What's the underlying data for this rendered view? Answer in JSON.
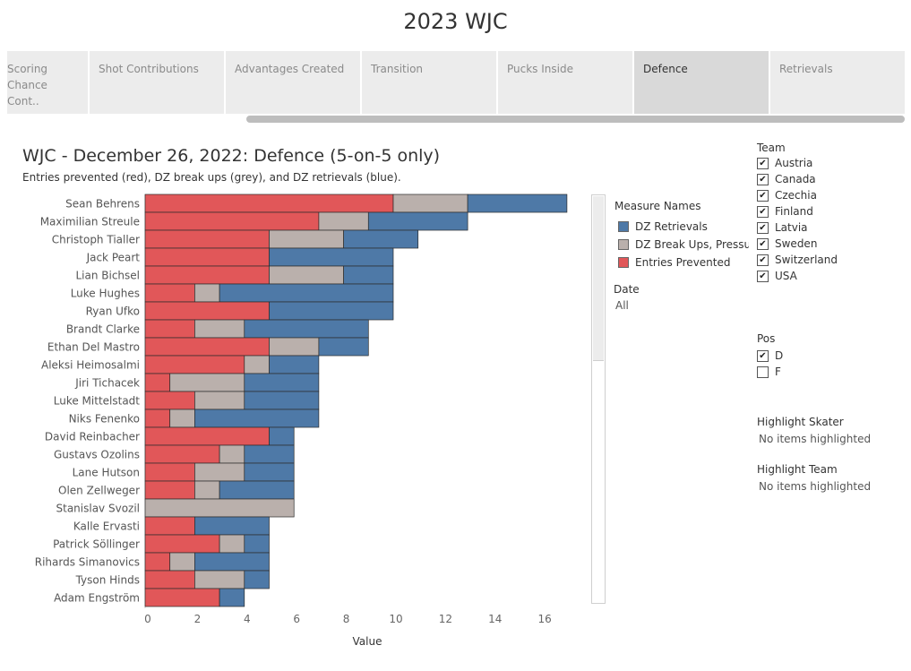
{
  "dashboard": {
    "title": "2023 WJC"
  },
  "tabs": [
    {
      "label": "Scoring Chance Cont..",
      "active": false
    },
    {
      "label": "Shot Contributions",
      "active": false
    },
    {
      "label": "Advantages Created",
      "active": false
    },
    {
      "label": "Transition",
      "active": false
    },
    {
      "label": "Pucks Inside",
      "active": false
    },
    {
      "label": "Defence",
      "active": true
    },
    {
      "label": "Retrievals",
      "active": false
    }
  ],
  "sheet": {
    "title": "WJC - December 26, 2022: Defence (5-on-5 only)",
    "subtitle": "Entries prevented (red), DZ break ups (grey), and DZ retrievals (blue)."
  },
  "legend": {
    "title": "Measure Names",
    "items": [
      {
        "label": "DZ Retrievals",
        "color": "#4e79a7"
      },
      {
        "label": "DZ Break Ups, Pressu..",
        "color": "#bab0ac"
      },
      {
        "label": "Entries Prevented",
        "color": "#e15759"
      }
    ]
  },
  "date_filter": {
    "title": "Date",
    "value": "All"
  },
  "team_filter": {
    "title": "Team",
    "options": [
      "Austria",
      "Canada",
      "Czechia",
      "Finland",
      "Latvia",
      "Sweden",
      "Switzerland",
      "USA"
    ],
    "checkmark": "✔"
  },
  "pos_filter": {
    "title": "Pos",
    "options": [
      {
        "label": "D",
        "checked": true
      },
      {
        "label": "F",
        "checked": false
      }
    ],
    "checkmark": "✔"
  },
  "highlight_skater": {
    "title": "Highlight Skater",
    "value": "No items highlighted"
  },
  "highlight_team": {
    "title": "Highlight Team",
    "value": "No items highlighted"
  },
  "chart_data": {
    "type": "bar",
    "orientation": "horizontal",
    "stacked": true,
    "xlabel": "Value",
    "xlim": [
      0,
      17.5
    ],
    "xticks": [
      0,
      2,
      4,
      6,
      8,
      10,
      12,
      14,
      16
    ],
    "categories": [
      "Sean Behrens",
      "Maximilian Streule",
      "Christoph Tialler",
      "Jack Peart",
      "Lian Bichsel",
      "Luke Hughes",
      "Ryan Ufko",
      "Brandt Clarke",
      "Ethan Del Mastro",
      "Aleksi Heimosalmi",
      "Jiri Tichacek",
      "Luke Mittelstadt",
      "Niks Fenenko",
      "David Reinbacher",
      "Gustavs Ozolins",
      "Lane Hutson",
      "Olen Zellweger",
      "Stanislav Svozil",
      "Kalle Ervasti",
      "Patrick Söllinger",
      "Rihards Simanovics",
      "Tyson Hinds",
      "Adam Engström"
    ],
    "series": [
      {
        "name": "Entries Prevented",
        "color": "#e15759",
        "values": [
          10,
          7,
          5,
          5,
          5,
          2,
          5,
          2,
          5,
          4,
          1,
          2,
          1,
          5,
          3,
          2,
          2,
          0,
          2,
          3,
          1,
          2,
          3
        ]
      },
      {
        "name": "DZ Break Ups, Pressu..",
        "color": "#bab0ac",
        "values": [
          3,
          2,
          3,
          0,
          3,
          1,
          0,
          2,
          2,
          1,
          3,
          2,
          1,
          0,
          1,
          2,
          1,
          6,
          0,
          1,
          1,
          2,
          0
        ]
      },
      {
        "name": "DZ Retrievals",
        "color": "#4e79a7",
        "values": [
          4,
          4,
          3,
          5,
          2,
          7,
          5,
          5,
          2,
          2,
          3,
          3,
          5,
          1,
          2,
          2,
          3,
          0,
          3,
          1,
          3,
          1,
          1
        ]
      }
    ]
  }
}
